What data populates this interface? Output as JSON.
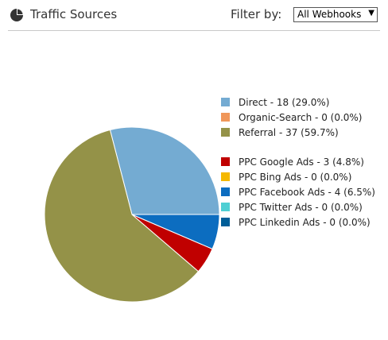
{
  "header": {
    "title": "Traffic Sources",
    "filter_label": "Filter by:",
    "filter_value": "All Webhooks",
    "icon": "pie-chart-icon"
  },
  "chart_data": {
    "type": "pie",
    "title": "",
    "slices": [
      {
        "name": "Direct",
        "value": 18,
        "percent": 29.0,
        "label": "Direct - 18 (29.0%)",
        "color": "#74abd2"
      },
      {
        "name": "Organic-Search",
        "value": 0,
        "percent": 0.0,
        "label": "Organic-Search - 0 (0.0%)",
        "color": "#f0975a"
      },
      {
        "name": "Referral",
        "value": 37,
        "percent": 59.7,
        "label": "Referral - 37 (59.7%)",
        "color": "#949248"
      },
      {
        "name": "PPC Google Ads",
        "value": 3,
        "percent": 4.8,
        "label": "PPC Google Ads - 3 (4.8%)",
        "color": "#c00000"
      },
      {
        "name": "PPC Bing Ads",
        "value": 0,
        "percent": 0.0,
        "label": "PPC Bing Ads - 0 (0.0%)",
        "color": "#f5b800"
      },
      {
        "name": "PPC Facebook Ads",
        "value": 4,
        "percent": 6.5,
        "label": "PPC Facebook Ads - 4 (6.5%)",
        "color": "#0c6dc0"
      },
      {
        "name": "PPC Twitter Ads",
        "value": 0,
        "percent": 0.0,
        "label": "PPC Twitter Ads - 0 (0.0%)",
        "color": "#4fcfd3"
      },
      {
        "name": "PPC Linkedin Ads",
        "value": 0,
        "percent": 0.0,
        "label": "PPC Linkedin Ads - 0 (0.0%)",
        "color": "#005e98"
      }
    ],
    "legend_groups": [
      [
        0,
        1,
        2
      ],
      [
        3,
        4,
        5,
        6,
        7
      ]
    ],
    "legend_position": "right"
  }
}
